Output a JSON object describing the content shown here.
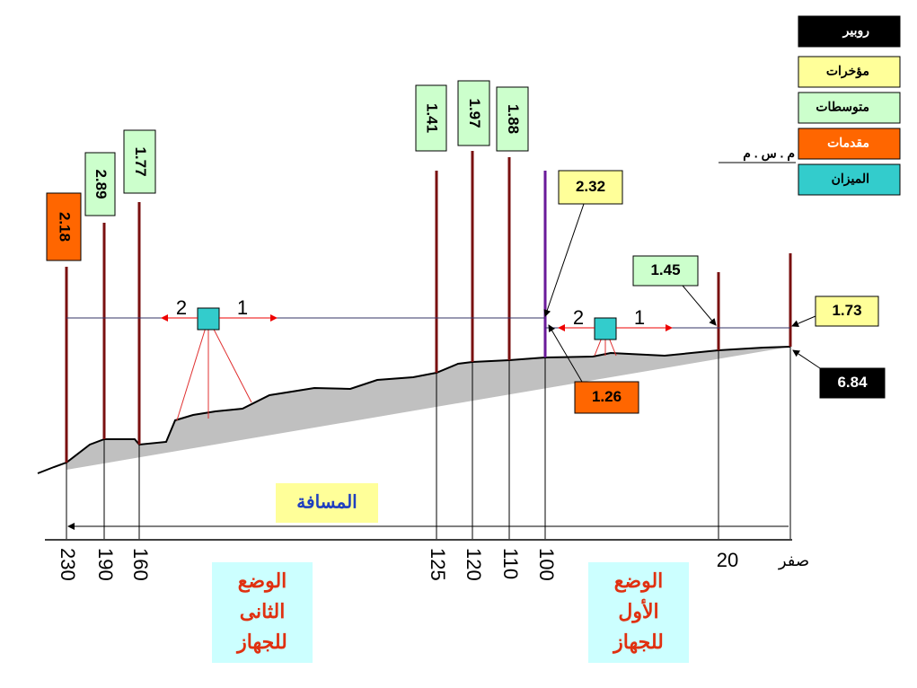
{
  "legend": {
    "items": [
      "روبير",
      "مؤخرات",
      "متوسطات",
      "مقدمات",
      "الميزان"
    ],
    "datum": "م . س . م"
  },
  "readings": [
    "2.18",
    "2.89",
    "1.77",
    "1.41",
    "1.97",
    "1.88",
    "2.32",
    "1.45",
    "1.73",
    "1.26",
    "6.84"
  ],
  "stations": [
    {
      "label": [
        "الوضع",
        "الثانى",
        "للجهاز"
      ],
      "directions": [
        "2",
        "1"
      ]
    },
    {
      "label": [
        "الوضع",
        "الأول",
        "للجهاز"
      ],
      "directions": [
        "2",
        "1"
      ]
    }
  ],
  "distance": {
    "label": "المسافة",
    "ticks": [
      "230",
      "190",
      "160",
      "125",
      "120",
      "110",
      "100",
      "20",
      "صفر"
    ]
  }
}
